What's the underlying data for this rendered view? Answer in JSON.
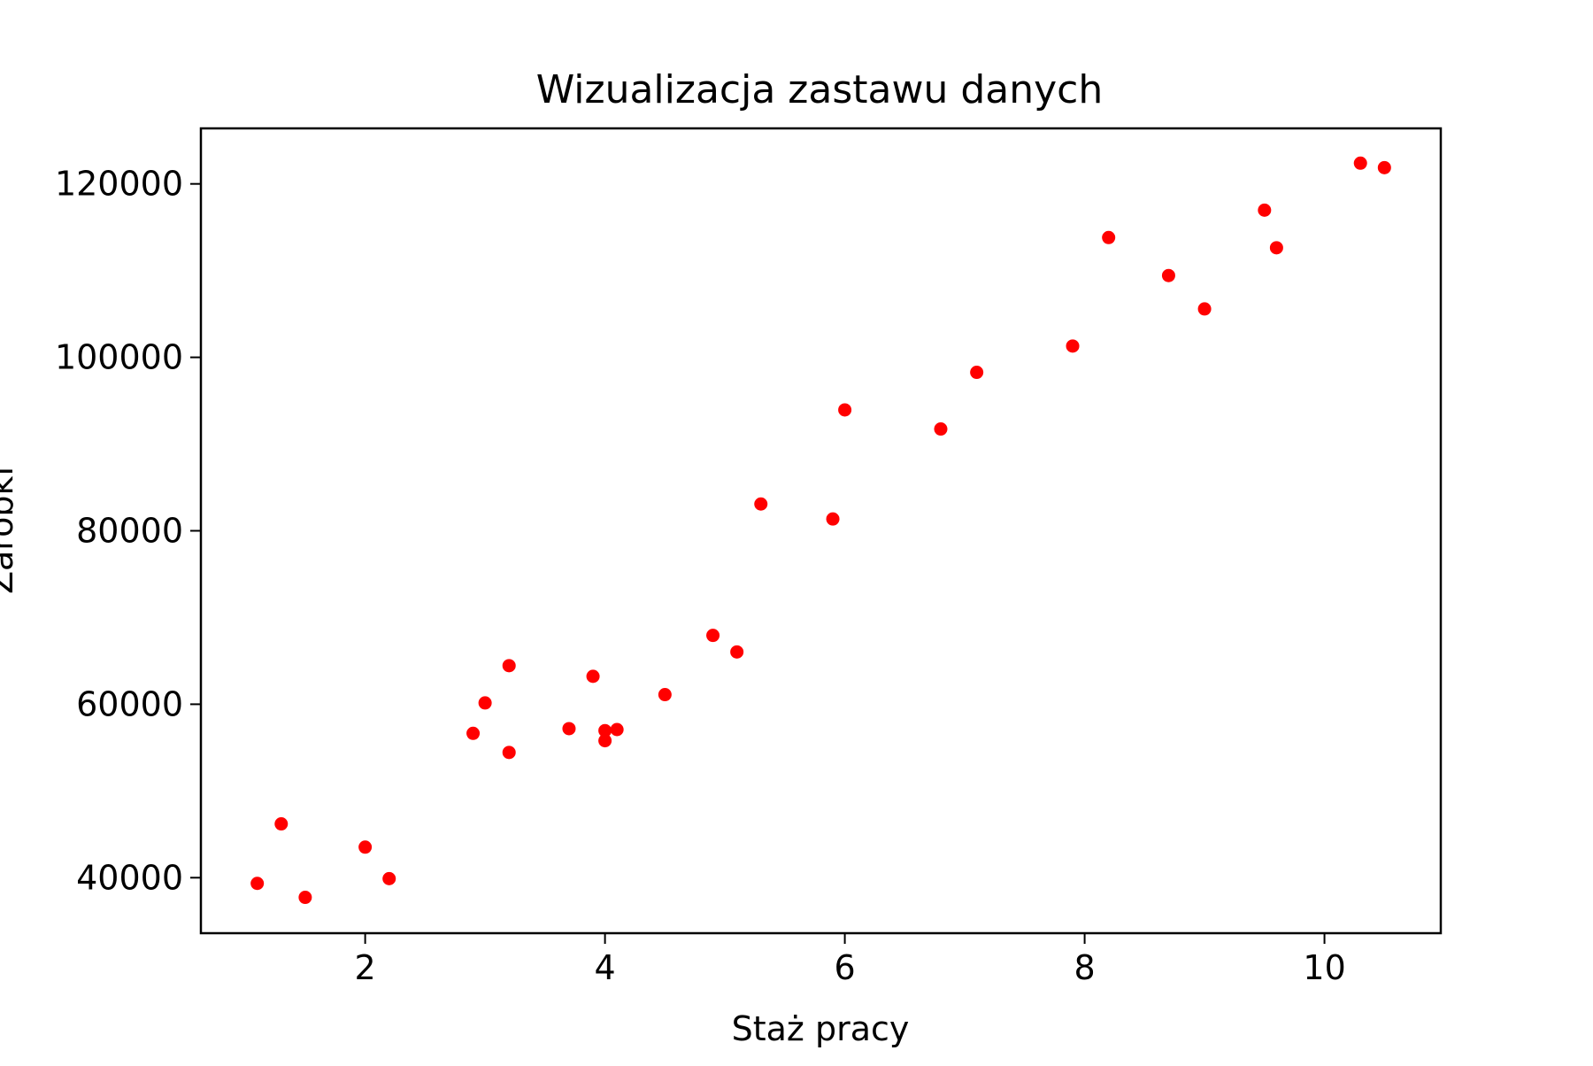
{
  "chart_data": {
    "type": "scatter",
    "title": "Wizualizacja zastawu danych",
    "xlabel": "Staż pracy",
    "ylabel": "Zarobki",
    "xlim": [
      0.63,
      10.97
    ],
    "ylim": [
      33600,
      126400
    ],
    "xticks": [
      2,
      4,
      6,
      8,
      10
    ],
    "yticks": [
      40000,
      60000,
      80000,
      100000,
      120000
    ],
    "grid": false,
    "marker_color": "#ff0000",
    "points": [
      {
        "x": 1.1,
        "y": 39343
      },
      {
        "x": 1.3,
        "y": 46205
      },
      {
        "x": 1.5,
        "y": 37731
      },
      {
        "x": 2.0,
        "y": 43525
      },
      {
        "x": 2.2,
        "y": 39891
      },
      {
        "x": 2.9,
        "y": 56642
      },
      {
        "x": 3.0,
        "y": 60150
      },
      {
        "x": 3.2,
        "y": 54445
      },
      {
        "x": 3.2,
        "y": 64445
      },
      {
        "x": 3.7,
        "y": 57189
      },
      {
        "x": 3.9,
        "y": 63218
      },
      {
        "x": 4.0,
        "y": 55794
      },
      {
        "x": 4.0,
        "y": 56957
      },
      {
        "x": 4.1,
        "y": 57081
      },
      {
        "x": 4.5,
        "y": 61111
      },
      {
        "x": 4.9,
        "y": 67938
      },
      {
        "x": 5.1,
        "y": 66029
      },
      {
        "x": 5.3,
        "y": 83088
      },
      {
        "x": 5.9,
        "y": 81363
      },
      {
        "x": 6.0,
        "y": 93940
      },
      {
        "x": 6.8,
        "y": 91738
      },
      {
        "x": 7.1,
        "y": 98273
      },
      {
        "x": 7.9,
        "y": 101302
      },
      {
        "x": 8.2,
        "y": 113812
      },
      {
        "x": 8.7,
        "y": 109431
      },
      {
        "x": 9.0,
        "y": 105582
      },
      {
        "x": 9.5,
        "y": 116969
      },
      {
        "x": 9.6,
        "y": 112635
      },
      {
        "x": 10.3,
        "y": 122391
      },
      {
        "x": 10.5,
        "y": 121872
      }
    ]
  }
}
